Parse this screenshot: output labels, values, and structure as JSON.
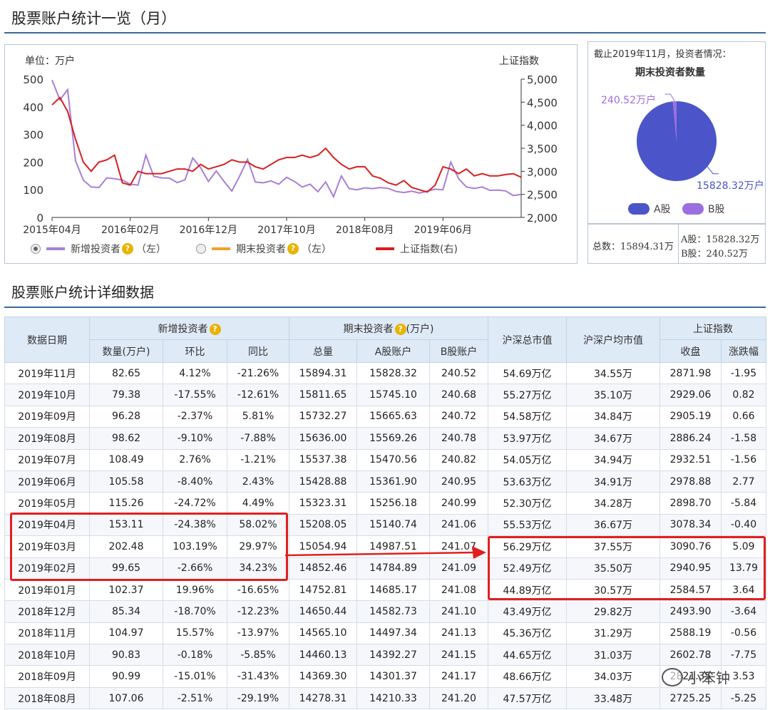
{
  "titles": {
    "overview": "股票账户统计一览（月）",
    "detail": "股票账户统计详细数据"
  },
  "chart_data": {
    "type": "line",
    "unit_label": "单位：万户",
    "right_axis_label": "上证指数",
    "y_left": {
      "min": 0,
      "max": 500,
      "ticks": [
        "0",
        "100",
        "200",
        "300",
        "400",
        "500"
      ]
    },
    "y_right": {
      "min": 2000,
      "max": 5000,
      "ticks": [
        "2,000",
        "2,500",
        "3,000",
        "3,500",
        "4,000",
        "4,500",
        "5,000"
      ]
    },
    "x_ticks": [
      "2015年04月",
      "2016年02月",
      "2016年12月",
      "2017年10月",
      "2018年08月",
      "2019年06月"
    ],
    "x_tick_index": [
      0,
      10,
      20,
      30,
      40,
      50
    ],
    "series": [
      {
        "name": "新增投资者",
        "axis": "left",
        "color": "#a77fd6",
        "values": [
          497,
          425,
          462,
          205,
          135,
          110,
          108,
          143,
          140,
          135,
          120,
          117,
          225,
          149,
          143,
          142,
          126,
          136,
          215,
          180,
          130,
          168,
          130,
          95,
          150,
          210,
          128,
          125,
          132,
          120,
          145,
          130,
          110,
          120,
          93,
          128,
          75,
          150,
          104,
          100,
          107,
          104,
          108,
          105,
          94,
          90,
          95,
          88,
          95,
          102,
          100,
          200,
          140,
          110,
          105,
          110,
          98,
          99,
          96,
          79,
          83
        ]
      },
      {
        "name": "上证指数",
        "axis": "right",
        "color": "#d81e1e",
        "values": [
          4440,
          4600,
          4300,
          3700,
          3200,
          3000,
          3200,
          3250,
          3350,
          2750,
          2700,
          3000,
          2950,
          2950,
          2950,
          3000,
          3050,
          3050,
          3000,
          3150,
          3050,
          3100,
          3150,
          3250,
          3200,
          3200,
          3100,
          3050,
          3150,
          3250,
          3300,
          3300,
          3350,
          3300,
          3350,
          3500,
          3300,
          3150,
          3050,
          3100,
          3100,
          2900,
          2850,
          2750,
          2700,
          2800,
          2650,
          2600,
          2550,
          2700,
          3100,
          3050,
          2950,
          3050,
          2900,
          2950,
          2900,
          2900,
          2930,
          2950,
          2871
        ]
      }
    ],
    "legend": [
      {
        "label": "新增投资者",
        "suffix": "（左）",
        "color": "#a77fd6",
        "selected": true
      },
      {
        "label": "期末投资者",
        "suffix": "（左）",
        "color": "#f0a030",
        "selected": false
      },
      {
        "label": "上证指数(右)",
        "suffix": "",
        "color": "#d81e1e",
        "selected": false
      }
    ]
  },
  "pie": {
    "caption": "截止2019年11月，投资者情况：",
    "title": "期末投资者数量",
    "slices": [
      {
        "name": "A股",
        "value": 15828.32,
        "label": "15828.32万户",
        "color": "#4b55c9"
      },
      {
        "name": "B股",
        "value": 240.52,
        "label": "240.52万户",
        "color": "#9b6fe0"
      }
    ],
    "total_label": "总数：15894.31万",
    "a_label": "A股：15828.32万",
    "b_label": "B股：240.52万"
  },
  "table": {
    "group_headers": {
      "date": "数据日期",
      "new": "新增投资者",
      "end": "期末投资者",
      "end_unit": "(万户)",
      "mktcap": "沪深总市值",
      "avg": "沪深户均市值",
      "index": "上证指数"
    },
    "sub_headers": [
      "数量(万户)",
      "环比",
      "同比",
      "总量",
      "A股账户",
      "B股账户",
      "收盘",
      "涨跌幅"
    ],
    "rows": [
      [
        "2019年11月",
        "82.65",
        "4.12%",
        "-21.26%",
        "15894.31",
        "15828.32",
        "240.52",
        "54.69万亿",
        "34.55万",
        "2871.98",
        "-1.95"
      ],
      [
        "2019年10月",
        "79.38",
        "-17.55%",
        "-12.61%",
        "15811.65",
        "15745.10",
        "240.68",
        "55.27万亿",
        "35.10万",
        "2929.06",
        "0.82"
      ],
      [
        "2019年09月",
        "96.28",
        "-2.37%",
        "5.81%",
        "15732.27",
        "15665.63",
        "240.72",
        "54.58万亿",
        "34.84万",
        "2905.19",
        "0.66"
      ],
      [
        "2019年08月",
        "98.62",
        "-9.10%",
        "-7.88%",
        "15636.00",
        "15569.26",
        "240.78",
        "53.97万亿",
        "34.67万",
        "2886.24",
        "-1.58"
      ],
      [
        "2019年07月",
        "108.49",
        "2.76%",
        "-1.21%",
        "15537.38",
        "15470.56",
        "240.82",
        "54.05万亿",
        "34.94万",
        "2932.51",
        "-1.56"
      ],
      [
        "2019年06月",
        "105.58",
        "-8.40%",
        "2.43%",
        "15428.88",
        "15361.90",
        "240.95",
        "53.63万亿",
        "34.91万",
        "2978.88",
        "2.77"
      ],
      [
        "2019年05月",
        "115.26",
        "-24.72%",
        "4.49%",
        "15323.31",
        "15256.18",
        "240.99",
        "52.30万亿",
        "34.28万",
        "2898.70",
        "-5.84"
      ],
      [
        "2019年04月",
        "153.11",
        "-24.38%",
        "58.02%",
        "15208.05",
        "15140.74",
        "241.06",
        "55.53万亿",
        "36.67万",
        "3078.34",
        "-0.40"
      ],
      [
        "2019年03月",
        "202.48",
        "103.19%",
        "29.97%",
        "15054.94",
        "14987.51",
        "241.07",
        "56.29万亿",
        "37.55万",
        "3090.76",
        "5.09"
      ],
      [
        "2019年02月",
        "99.65",
        "-2.66%",
        "34.23%",
        "14852.46",
        "14784.89",
        "241.09",
        "52.49万亿",
        "35.50万",
        "2940.95",
        "13.79"
      ],
      [
        "2019年01月",
        "102.37",
        "19.96%",
        "-16.65%",
        "14752.81",
        "14685.17",
        "241.08",
        "44.89万亿",
        "30.57万",
        "2584.57",
        "3.64"
      ],
      [
        "2018年12月",
        "85.34",
        "-18.70%",
        "-12.23%",
        "14650.44",
        "14582.73",
        "241.10",
        "43.49万亿",
        "29.82万",
        "2493.90",
        "-3.64"
      ],
      [
        "2018年11月",
        "104.97",
        "15.57%",
        "-13.97%",
        "14565.10",
        "14497.34",
        "241.13",
        "45.36万亿",
        "31.29万",
        "2588.19",
        "-0.56"
      ],
      [
        "2018年10月",
        "90.83",
        "-0.18%",
        "-5.85%",
        "14460.13",
        "14392.27",
        "241.15",
        "44.65万亿",
        "31.03万",
        "2602.78",
        "-7.75"
      ],
      [
        "2018年09月",
        "90.99",
        "-15.01%",
        "-31.43%",
        "14369.30",
        "14301.37",
        "241.17",
        "48.66万亿",
        "34.03万",
        "2821.35",
        "3.53"
      ],
      [
        "2018年08月",
        "107.06",
        "-2.51%",
        "-29.19%",
        "14278.31",
        "14210.33",
        "241.20",
        "47.57万亿",
        "33.48万",
        "2725.25",
        "-5.25"
      ]
    ]
  },
  "watermark": "小笨钟"
}
